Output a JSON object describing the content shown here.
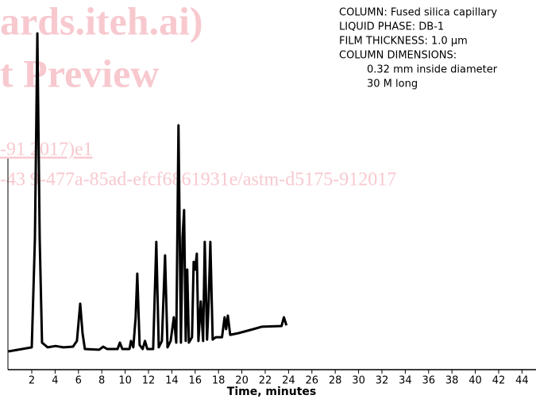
{
  "chart_data": {
    "type": "line",
    "x_label": "Time, minutes",
    "annotations": [
      "COLUMN: Fused silica capillary",
      "LIQUID PHASE: DB-1",
      "FILM THICKNESS: 1.0 μm",
      "COLUMN DIMENSIONS:",
      "0.32 mm inside diameter",
      "30 M long"
    ],
    "watermark": [
      "ards.iteh.ai)",
      "t Preview",
      "-91 2017)e1",
      "-43 9-477a-85ad-efcf6861931e/astm-d5175-912017"
    ],
    "color": "#000000",
    "xlim": [
      0,
      45.2
    ],
    "ylim": [
      0,
      100
    ],
    "xticks": [
      2,
      4,
      6,
      8,
      10,
      12,
      14,
      16,
      18,
      20,
      22,
      24,
      26,
      28,
      30,
      32,
      34,
      36,
      38,
      40,
      42,
      44
    ],
    "x": [
      0,
      2.0,
      2.27,
      2.48,
      2.68,
      2.88,
      3.36,
      4.04,
      4.72,
      5.53,
      5.87,
      6.15,
      6.35,
      6.55,
      7.78,
      8.12,
      8.46,
      9.35,
      9.55,
      9.76,
      10.37,
      10.5,
      10.7,
      10.9,
      11.04,
      11.24,
      11.5,
      11.7,
      11.9,
      12.4,
      12.67,
      12.88,
      13.15,
      13.42,
      13.63,
      13.9,
      14.17,
      14.38,
      14.57,
      14.78,
      14.92,
      15.05,
      15.19,
      15.32,
      15.46,
      15.73,
      15.87,
      16.0,
      16.14,
      16.28,
      16.48,
      16.68,
      16.82,
      17.02,
      17.16,
      17.3,
      17.5,
      17.77,
      18.3,
      18.52,
      18.65,
      18.8,
      19.0,
      19.7,
      21.0,
      21.7,
      23.4,
      23.6,
      23.82
    ],
    "values": [
      5.4,
      6.6,
      38.7,
      99.5,
      38.7,
      8,
      6.6,
      7,
      6.6,
      6.8,
      8.5,
      19.5,
      10.8,
      6.1,
      5.9,
      6.8,
      6.1,
      6.1,
      8,
      6.1,
      6.1,
      8.5,
      6.6,
      15.5,
      28.4,
      7.3,
      6.1,
      8.5,
      6.1,
      6.1,
      37.8,
      6.6,
      8.5,
      33.8,
      6.6,
      8.5,
      15.5,
      8,
      72.3,
      8,
      39,
      47.2,
      8.5,
      29.6,
      8,
      9.6,
      31.9,
      29.6,
      34.3,
      8.5,
      20.2,
      8.5,
      37.8,
      8.9,
      20.2,
      37.8,
      8.9,
      9.6,
      9.6,
      15.5,
      12,
      16,
      10.3,
      10.8,
      12,
      12.7,
      12.9,
      15.5,
      13.1
    ]
  }
}
